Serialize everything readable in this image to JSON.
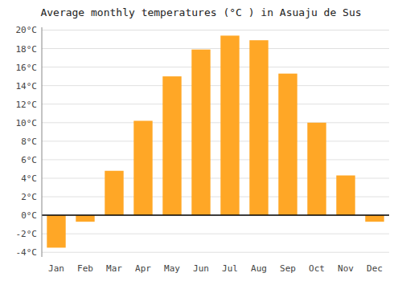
{
  "chart_data": {
    "type": "bar",
    "title": "Average monthly temperatures (°C ) in Asuaju de Sus",
    "categories": [
      "Jan",
      "Feb",
      "Mar",
      "Apr",
      "May",
      "Jun",
      "Jul",
      "Aug",
      "Sep",
      "Oct",
      "Nov",
      "Dec"
    ],
    "values": [
      -3.5,
      -0.7,
      4.8,
      10.2,
      15.0,
      17.9,
      19.4,
      18.9,
      15.3,
      10.0,
      4.3,
      -0.7
    ],
    "color": "#FFA726",
    "ylim": [
      -4.5,
      20.3
    ],
    "yticks": [
      {
        "value": -4,
        "label": "-4°C"
      },
      {
        "value": -2,
        "label": "-2°C"
      },
      {
        "value": 0,
        "label": "0°C"
      },
      {
        "value": 2,
        "label": "2°C"
      },
      {
        "value": 4,
        "label": "4°C"
      },
      {
        "value": 6,
        "label": "6°C"
      },
      {
        "value": 8,
        "label": "8°C"
      },
      {
        "value": 10,
        "label": "10°C"
      },
      {
        "value": 12,
        "label": "12°C"
      },
      {
        "value": 14,
        "label": "14°C"
      },
      {
        "value": 16,
        "label": "16°C"
      },
      {
        "value": 18,
        "label": "18°C"
      },
      {
        "value": 20,
        "label": "20°C"
      }
    ],
    "grid": true
  }
}
